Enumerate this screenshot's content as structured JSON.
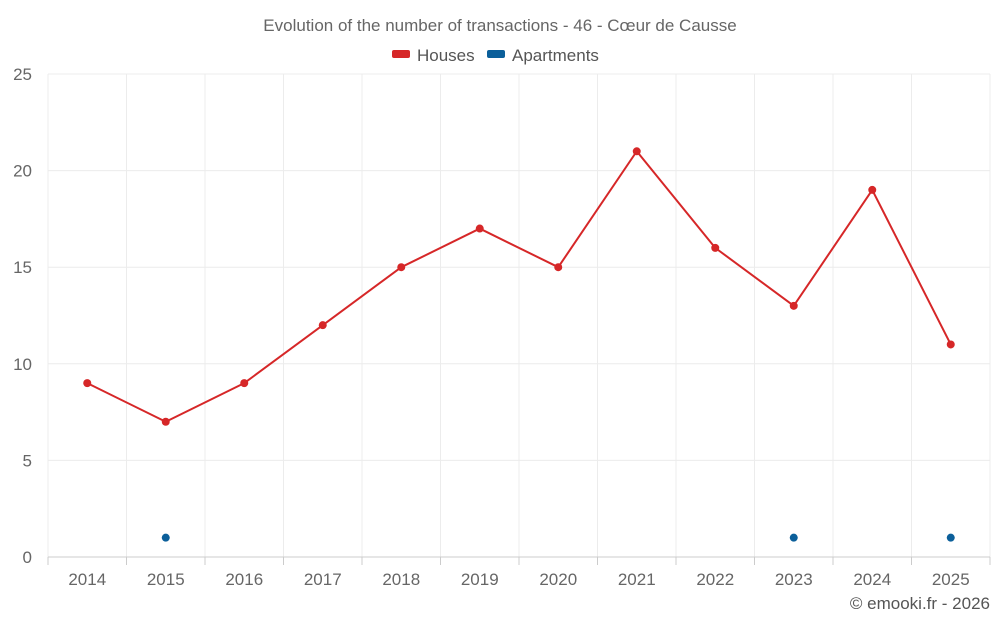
{
  "chart_data": {
    "type": "line",
    "title": "Evolution of the number of transactions - 46 - Cœur de Causse",
    "categories": [
      "2014",
      "2015",
      "2016",
      "2017",
      "2018",
      "2019",
      "2020",
      "2021",
      "2022",
      "2023",
      "2024",
      "2025"
    ],
    "series": [
      {
        "name": "Houses",
        "color": "#d62728",
        "values": [
          9,
          7,
          9,
          12,
          15,
          17,
          15,
          21,
          16,
          13,
          19,
          11
        ]
      },
      {
        "name": "Apartments",
        "color": "#0b5f9a",
        "values": [
          null,
          1,
          null,
          null,
          null,
          null,
          null,
          null,
          null,
          1,
          null,
          1
        ]
      }
    ],
    "xlabel": "",
    "ylabel": "",
    "ylim": [
      0,
      25
    ],
    "yticks": [
      "0",
      "5",
      "10",
      "15",
      "20",
      "25"
    ],
    "grid": true,
    "legend": "top-center"
  },
  "footer": {
    "copyright": "© emooki.fr - 2026"
  },
  "colors": {
    "grid": "#ececec",
    "axis": "#cccccc",
    "text": "#666666"
  }
}
